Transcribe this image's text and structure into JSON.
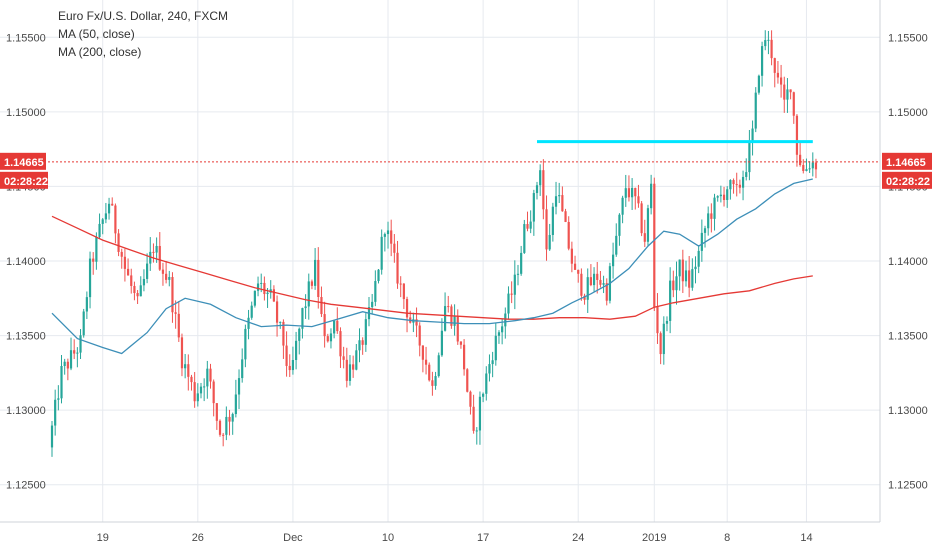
{
  "legend": {
    "title": "Euro Fx/U.S. Dollar, 240, FXCM",
    "ma50": "MA (50, close)",
    "ma200": "MA (200, close)"
  },
  "price_tag": {
    "value": "1.14665",
    "countdown": "02:28:22"
  },
  "colors": {
    "up": "#26a69a",
    "down": "#ef5350",
    "ma50": "#3d8fb8",
    "ma200": "#e53935",
    "resistance": "#00e5ff",
    "price_line": "#e53935",
    "grid": "#e6eaef"
  },
  "chart_data": {
    "type": "candlestick",
    "instrument": "Euro Fx/U.S. Dollar",
    "timeframe": "240",
    "source": "FXCM",
    "ylim": [
      1.1225,
      1.1575
    ],
    "y_ticks": [
      "1.12500",
      "1.13000",
      "1.13500",
      "1.14000",
      "1.14500",
      "1.15000",
      "1.15500"
    ],
    "x_ticks": [
      "19",
      "26",
      "Dec",
      "10",
      "17",
      "24",
      "2019",
      "8",
      "14"
    ],
    "x_tick_index": [
      16,
      46,
      76,
      106,
      136,
      166,
      190,
      213,
      238
    ],
    "last_price": 1.14665,
    "resistance_level": 1.148,
    "resistance_span": [
      153,
      240
    ],
    "key_points": [
      [
        0,
        1.1275
      ],
      [
        4,
        1.1325
      ],
      [
        10,
        1.1345
      ],
      [
        13,
        1.1395
      ],
      [
        16,
        1.142
      ],
      [
        19,
        1.144
      ],
      [
        24,
        1.1395
      ],
      [
        28,
        1.137
      ],
      [
        33,
        1.141
      ],
      [
        38,
        1.1385
      ],
      [
        42,
        1.1335
      ],
      [
        46,
        1.131
      ],
      [
        50,
        1.1325
      ],
      [
        54,
        1.1285
      ],
      [
        58,
        1.13
      ],
      [
        62,
        1.135
      ],
      [
        66,
        1.1385
      ],
      [
        70,
        1.1375
      ],
      [
        74,
        1.1345
      ],
      [
        76,
        1.132
      ],
      [
        80,
        1.1365
      ],
      [
        84,
        1.1395
      ],
      [
        87,
        1.1345
      ],
      [
        90,
        1.136
      ],
      [
        94,
        1.1325
      ],
      [
        98,
        1.134
      ],
      [
        102,
        1.137
      ],
      [
        106,
        1.1425
      ],
      [
        110,
        1.139
      ],
      [
        114,
        1.136
      ],
      [
        118,
        1.134
      ],
      [
        121,
        1.1315
      ],
      [
        125,
        1.137
      ],
      [
        128,
        1.136
      ],
      [
        131,
        1.133
      ],
      [
        134,
        1.128
      ],
      [
        136,
        1.1305
      ],
      [
        140,
        1.134
      ],
      [
        144,
        1.1365
      ],
      [
        147,
        1.1385
      ],
      [
        150,
        1.142
      ],
      [
        153,
        1.144
      ],
      [
        155,
        1.1465
      ],
      [
        157,
        1.1405
      ],
      [
        160,
        1.145
      ],
      [
        163,
        1.142
      ],
      [
        166,
        1.139
      ],
      [
        169,
        1.138
      ],
      [
        173,
        1.139
      ],
      [
        176,
        1.138
      ],
      [
        179,
        1.1415
      ],
      [
        182,
        1.145
      ],
      [
        185,
        1.144
      ],
      [
        188,
        1.1415
      ],
      [
        190,
        1.145
      ],
      [
        191,
        1.137
      ],
      [
        193,
        1.134
      ],
      [
        196,
        1.138
      ],
      [
        199,
        1.1395
      ],
      [
        202,
        1.1385
      ],
      [
        205,
        1.1405
      ],
      [
        208,
        1.143
      ],
      [
        211,
        1.144
      ],
      [
        214,
        1.145
      ],
      [
        217,
        1.1445
      ],
      [
        220,
        1.1465
      ],
      [
        222,
        1.1485
      ],
      [
        224,
        1.153
      ],
      [
        226,
        1.155
      ],
      [
        228,
        1.154
      ],
      [
        230,
        1.152
      ],
      [
        232,
        1.1505
      ],
      [
        234,
        1.152
      ],
      [
        236,
        1.1475
      ],
      [
        238,
        1.146
      ],
      [
        240,
        1.1466
      ]
    ],
    "ma50": [
      [
        0,
        1.1365
      ],
      [
        8,
        1.1348
      ],
      [
        16,
        1.1342
      ],
      [
        22,
        1.1338
      ],
      [
        30,
        1.1352
      ],
      [
        36,
        1.1368
      ],
      [
        42,
        1.1375
      ],
      [
        50,
        1.1371
      ],
      [
        58,
        1.1362
      ],
      [
        66,
        1.1356
      ],
      [
        74,
        1.1357
      ],
      [
        82,
        1.1356
      ],
      [
        90,
        1.1361
      ],
      [
        98,
        1.1366
      ],
      [
        106,
        1.1362
      ],
      [
        114,
        1.136
      ],
      [
        122,
        1.1359
      ],
      [
        130,
        1.1358
      ],
      [
        138,
        1.1358
      ],
      [
        146,
        1.136
      ],
      [
        152,
        1.1362
      ],
      [
        158,
        1.1365
      ],
      [
        164,
        1.1372
      ],
      [
        170,
        1.1378
      ],
      [
        176,
        1.1385
      ],
      [
        182,
        1.1395
      ],
      [
        188,
        1.141
      ],
      [
        193,
        1.142
      ],
      [
        198,
        1.1418
      ],
      [
        204,
        1.141
      ],
      [
        210,
        1.1418
      ],
      [
        216,
        1.1428
      ],
      [
        222,
        1.1435
      ],
      [
        228,
        1.1445
      ],
      [
        234,
        1.1452
      ],
      [
        240,
        1.1455
      ]
    ],
    "ma200": [
      [
        0,
        1.143
      ],
      [
        8,
        1.1422
      ],
      [
        16,
        1.1414
      ],
      [
        24,
        1.1408
      ],
      [
        32,
        1.1402
      ],
      [
        40,
        1.1397
      ],
      [
        48,
        1.1392
      ],
      [
        56,
        1.1387
      ],
      [
        64,
        1.1382
      ],
      [
        72,
        1.1378
      ],
      [
        80,
        1.1374
      ],
      [
        88,
        1.1371
      ],
      [
        96,
        1.1369
      ],
      [
        104,
        1.1367
      ],
      [
        112,
        1.1365
      ],
      [
        120,
        1.1364
      ],
      [
        128,
        1.1363
      ],
      [
        136,
        1.1362
      ],
      [
        144,
        1.1361
      ],
      [
        152,
        1.1361
      ],
      [
        160,
        1.1362
      ],
      [
        168,
        1.1362
      ],
      [
        176,
        1.1361
      ],
      [
        184,
        1.1363
      ],
      [
        190,
        1.1369
      ],
      [
        196,
        1.1372
      ],
      [
        204,
        1.1375
      ],
      [
        212,
        1.1378
      ],
      [
        220,
        1.138
      ],
      [
        228,
        1.1385
      ],
      [
        234,
        1.1388
      ],
      [
        240,
        1.139
      ]
    ]
  }
}
